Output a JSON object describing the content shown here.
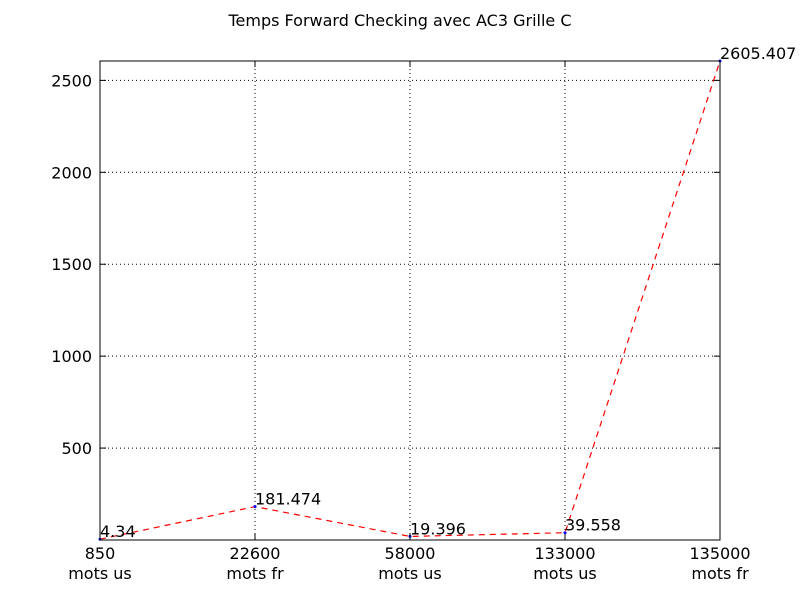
{
  "chart_data": {
    "type": "line",
    "title": "Temps Forward Checking avec AC3 Grille C",
    "xlabel": "",
    "ylabel": "",
    "categories": [
      [
        "850",
        "mots us"
      ],
      [
        "22600",
        "mots fr"
      ],
      [
        "58000",
        "mots us"
      ],
      [
        "133000",
        "mots us"
      ],
      [
        "135000",
        "mots fr"
      ]
    ],
    "series": [
      {
        "values": [
          4.34,
          181.474,
          19.396,
          39.558,
          2605.407
        ],
        "color": "#ff0000",
        "line_style": "dashed"
      }
    ],
    "data_labels": [
      "4.34",
      "181.474",
      "19.396",
      "39.558",
      "2605.407"
    ],
    "ylim": [
      0,
      2605.407
    ],
    "yticks": [
      500,
      1000,
      1500,
      2000,
      2500
    ],
    "grid": true,
    "marker_color": "#0000ff"
  }
}
